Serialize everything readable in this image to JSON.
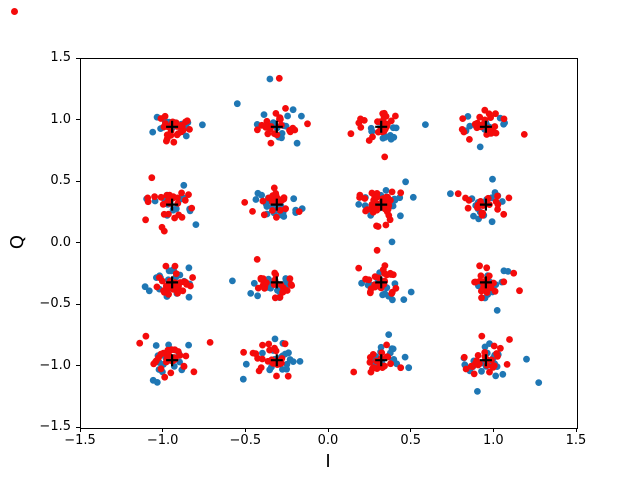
{
  "chart_data": {
    "type": "scatter",
    "xlabel": "I",
    "ylabel": "Q",
    "xlim": [
      -1.5,
      1.5
    ],
    "ylim": [
      -1.5,
      1.5
    ],
    "grid": false,
    "legend": "none",
    "x_ticks": [
      {
        "v": -1.5,
        "label": "−1.5"
      },
      {
        "v": -1.0,
        "label": "−1.0"
      },
      {
        "v": -0.5,
        "label": "−0.5"
      },
      {
        "v": 0.0,
        "label": "0.0"
      },
      {
        "v": 0.5,
        "label": "0.5"
      },
      {
        "v": 1.0,
        "label": "1.0"
      },
      {
        "v": 1.5,
        "label": "1.5"
      }
    ],
    "y_ticks": [
      {
        "v": 1.5,
        "label": "1.5"
      },
      {
        "v": 1.0,
        "label": "1.0"
      },
      {
        "v": 0.5,
        "label": "0.5"
      },
      {
        "v": 0.0,
        "label": "0.0"
      },
      {
        "v": -0.5,
        "label": "−0.5"
      },
      {
        "v": -1.0,
        "label": "−1.0"
      },
      {
        "v": -1.5,
        "label": "−1.5"
      }
    ],
    "series": [
      {
        "name": "received-symbols-blue",
        "marker": "dot",
        "color": "#1f77b4"
      },
      {
        "name": "received-symbols-red",
        "marker": "dot",
        "color": "#f40b0b"
      },
      {
        "name": "constellation-centers",
        "marker": "plus",
        "color": "#000000",
        "points": [
          [
            -0.949,
            -0.949
          ],
          [
            -0.316,
            -0.949
          ],
          [
            0.316,
            -0.949
          ],
          [
            0.949,
            -0.949
          ],
          [
            -0.949,
            -0.316
          ],
          [
            -0.316,
            -0.316
          ],
          [
            0.316,
            -0.316
          ],
          [
            0.949,
            -0.316
          ],
          [
            -0.949,
            0.316
          ],
          [
            -0.316,
            0.316
          ],
          [
            0.316,
            0.316
          ],
          [
            0.949,
            0.316
          ],
          [
            -0.949,
            0.949
          ],
          [
            -0.316,
            0.949
          ],
          [
            0.316,
            0.949
          ],
          [
            0.949,
            0.949
          ]
        ]
      }
    ],
    "clusters": {
      "description": "16-QAM received symbols scattered around each ideal constellation point",
      "levels": [
        -0.949,
        -0.316,
        0.316,
        0.949
      ],
      "std": 0.062,
      "outlier_fraction": 0.12,
      "outlier_scale": 2.1,
      "points_per_cluster": {
        "blue": 20,
        "red": 24
      },
      "count_jitter": 0.5,
      "dense_cluster": {
        "i": 0.316,
        "q": 0.316,
        "extra_red_points": 22,
        "std": 0.032
      },
      "seed": 11
    },
    "marker_px": {
      "dot_radius": 3.4,
      "plus_half": 6,
      "plus_stroke": 2.2
    }
  },
  "overlay": {
    "stray_dot_color": "#f40b0b"
  }
}
